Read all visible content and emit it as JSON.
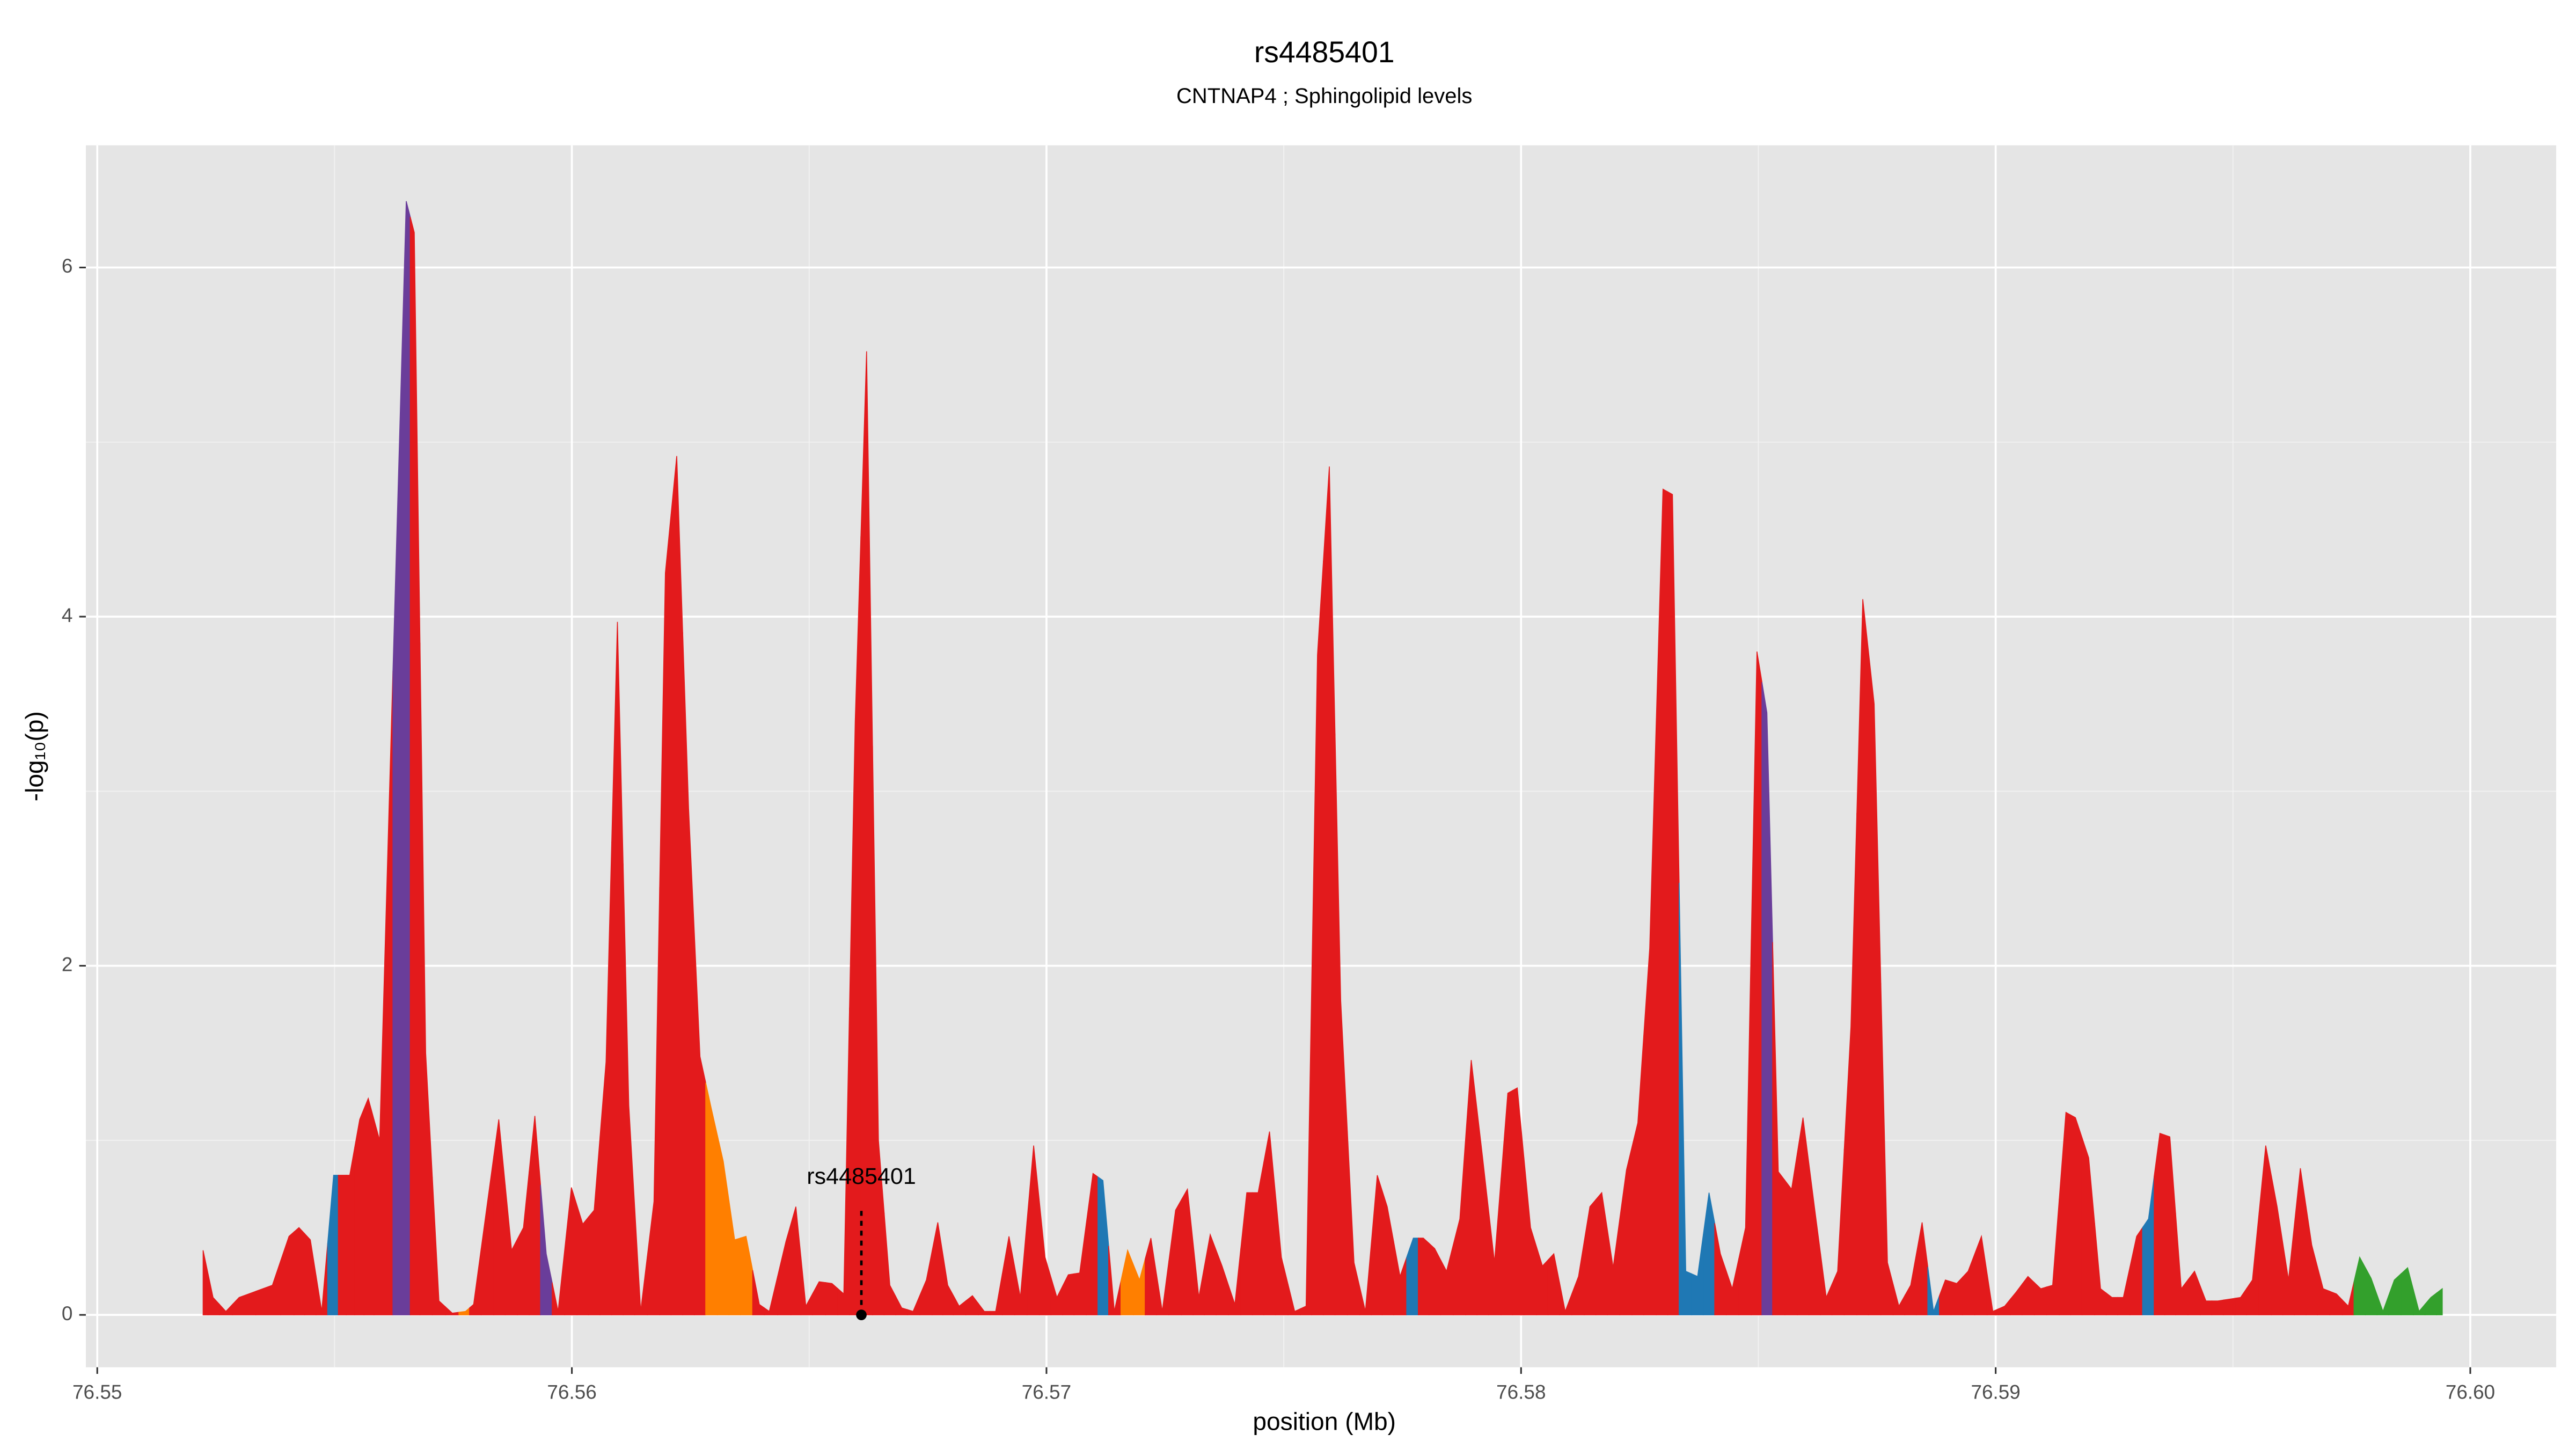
{
  "chart_data": {
    "type": "area",
    "title": "rs4485401",
    "subtitle": "CNTNAP4 ; Sphingolipid levels",
    "x_label": "position (Mb)",
    "y_label": "-log₁₀(p)",
    "xlim": [
      76.54976,
      76.60181
    ],
    "ylim": [
      -0.3,
      6.7
    ],
    "xticks": [
      76.55,
      76.56,
      76.57,
      76.58,
      76.59,
      {
        "value": 76.6,
        "label": "76.60"
      }
    ],
    "yticks": [
      0,
      2,
      4,
      6
    ],
    "grid": true,
    "highlight": {
      "label": "rs4485401",
      "x": 76.5661,
      "value": 0
    },
    "x": [
      76.55223,
      76.55244,
      76.55271,
      76.55299,
      76.55369,
      76.55404,
      76.55425,
      76.55449,
      76.55473,
      76.55498,
      76.55518,
      76.55532,
      76.55553,
      76.55571,
      76.55595,
      76.55651,
      76.55668,
      76.55692,
      76.5572,
      76.55748,
      76.55776,
      76.55793,
      76.55825,
      76.55846,
      76.55873,
      76.55898,
      76.55922,
      76.55946,
      76.55971,
      76.55999,
      76.56023,
      76.56047,
      76.56072,
      76.56096,
      76.5612,
      76.56145,
      76.56173,
      76.56197,
      76.56221,
      76.56246,
      76.5627,
      76.56294,
      76.56319,
      76.56343,
      76.56367,
      76.56395,
      76.56416,
      76.56451,
      76.56472,
      76.56493,
      76.56521,
      76.56548,
      76.56573,
      76.56597,
      76.56621,
      76.56646,
      76.5667,
      76.56695,
      76.56719,
      76.56747,
      76.56771,
      76.56792,
      76.56816,
      76.56844,
      76.56869,
      76.56893,
      76.56921,
      76.56945,
      76.56973,
      76.56997,
      76.57022,
      76.57046,
      76.5707,
      76.57098,
      76.57119,
      76.57143,
      76.57171,
      76.57196,
      76.5722,
      76.57244,
      76.57272,
      76.57297,
      76.57321,
      76.57345,
      76.5737,
      76.57397,
      76.57422,
      76.57446,
      76.5747,
      76.57495,
      76.57523,
      76.57547,
      76.57571,
      76.57596,
      76.5762,
      76.57648,
      76.57672,
      76.57697,
      76.57718,
      76.57745,
      76.57773,
      76.57794,
      76.57818,
      76.57843,
      76.57871,
      76.57895,
      76.57919,
      76.57944,
      76.57972,
      76.57992,
      76.5802,
      76.58045,
      76.58069,
      76.58093,
      76.58121,
      76.58145,
      76.5817,
      76.58194,
      76.58222,
      76.58246,
      76.58271,
      76.58299,
      76.58319,
      76.58347,
      76.58372,
      76.58396,
      76.5842,
      76.58445,
      76.58473,
      76.58497,
      76.58518,
      76.58542,
      76.5857,
      76.58594,
      76.58619,
      76.58643,
      76.58667,
      76.58695,
      76.5872,
      76.58744,
      76.58772,
      76.58796,
      76.58821,
      76.58845,
      76.58869,
      76.58894,
      76.58918,
      76.58942,
      76.5897,
      76.58994,
      76.59019,
      76.59043,
      76.59068,
      76.59095,
      76.5912,
      76.59148,
      76.59168,
      76.59196,
      76.59221,
      76.59245,
      76.59269,
      76.59297,
      76.59322,
      76.59346,
      76.59367,
      76.59391,
      76.59419,
      76.59443,
      76.59468,
      76.59492,
      76.59516,
      76.59541,
      76.59569,
      76.59593,
      76.59617,
      76.59642,
      76.59666,
      76.5969,
      76.59718,
      76.59743,
      76.59767,
      76.59791,
      76.59816,
      76.5984,
      76.59868,
      76.59892,
      76.59917,
      76.59941
    ],
    "values": [
      0.37,
      0.1,
      0.02,
      0.1,
      0.17,
      0.45,
      0.5,
      0.43,
      0.02,
      0.8,
      0.8,
      0.8,
      1.12,
      1.24,
      1.0,
      6.38,
      6.2,
      1.5,
      0.08,
      0.01,
      0.02,
      0.06,
      0.7,
      1.12,
      0.37,
      0.5,
      1.14,
      0.35,
      0.02,
      0.73,
      0.52,
      0.6,
      1.45,
      3.97,
      1.2,
      0.02,
      0.65,
      4.25,
      4.92,
      2.9,
      1.48,
      1.18,
      0.88,
      0.43,
      0.45,
      0.06,
      0.02,
      0.42,
      0.62,
      0.05,
      0.19,
      0.18,
      0.12,
      3.4,
      5.52,
      1.0,
      0.17,
      0.04,
      0.02,
      0.2,
      0.53,
      0.17,
      0.05,
      0.11,
      0.02,
      0.02,
      0.45,
      0.1,
      0.97,
      0.33,
      0.1,
      0.23,
      0.24,
      0.81,
      0.77,
      0.02,
      0.37,
      0.2,
      0.44,
      0.02,
      0.6,
      0.72,
      0.1,
      0.46,
      0.28,
      0.06,
      0.7,
      0.7,
      1.05,
      0.33,
      0.02,
      0.05,
      3.78,
      4.86,
      1.8,
      0.3,
      0.02,
      0.8,
      0.62,
      0.22,
      0.44,
      0.44,
      0.38,
      0.25,
      0.55,
      1.46,
      0.9,
      0.3,
      1.27,
      1.3,
      0.5,
      0.28,
      0.35,
      0.02,
      0.22,
      0.62,
      0.7,
      0.27,
      0.83,
      1.1,
      2.1,
      4.73,
      4.7,
      0.25,
      0.22,
      0.7,
      0.35,
      0.15,
      0.5,
      3.8,
      3.45,
      0.82,
      0.72,
      1.13,
      0.6,
      0.1,
      0.25,
      1.65,
      4.1,
      3.5,
      0.3,
      0.05,
      0.17,
      0.53,
      0.02,
      0.2,
      0.18,
      0.25,
      0.45,
      0.02,
      0.05,
      0.13,
      0.22,
      0.15,
      0.17,
      1.16,
      1.13,
      0.9,
      0.15,
      0.1,
      0.1,
      0.45,
      0.55,
      1.04,
      1.02,
      0.15,
      0.25,
      0.08,
      0.08,
      0.09,
      0.1,
      0.2,
      0.97,
      0.62,
      0.2,
      0.84,
      0.4,
      0.15,
      0.12,
      0.05,
      0.33,
      0.21,
      0.02,
      0.2,
      0.27,
      0.02,
      0.1,
      0.15
    ],
    "colors": [
      "#e31a1c",
      "#e31a1c",
      "#e31a1c",
      "#e31a1c",
      "#e31a1c",
      "#e31a1c",
      "#e31a1c",
      "#e31a1c",
      "#e31a1c",
      "#1f78b4",
      "#e31a1c",
      "#e31a1c",
      "#e31a1c",
      "#e31a1c",
      "#e31a1c",
      "#6a3d9a",
      "#e31a1c",
      "#e31a1c",
      "#e31a1c",
      "#e31a1c",
      "#ff7f00",
      "#e31a1c",
      "#e31a1c",
      "#e31a1c",
      "#e31a1c",
      "#e31a1c",
      "#e31a1c",
      "#6a3d9a",
      "#e31a1c",
      "#e31a1c",
      "#e31a1c",
      "#e31a1c",
      "#e31a1c",
      "#e31a1c",
      "#e31a1c",
      "#e31a1c",
      "#e31a1c",
      "#e31a1c",
      "#e31a1c",
      "#e31a1c",
      "#e31a1c",
      "#ff7f00",
      "#ff7f00",
      "#ff7f00",
      "#ff7f00",
      "#e31a1c",
      "#e31a1c",
      "#e31a1c",
      "#e31a1c",
      "#e31a1c",
      "#e31a1c",
      "#e31a1c",
      "#e31a1c",
      "#e31a1c",
      "#e31a1c",
      "#e31a1c",
      "#e31a1c",
      "#e31a1c",
      "#e31a1c",
      "#e31a1c",
      "#e31a1c",
      "#e31a1c",
      "#e31a1c",
      "#e31a1c",
      "#e31a1c",
      "#e31a1c",
      "#e31a1c",
      "#e31a1c",
      "#e31a1c",
      "#e31a1c",
      "#e31a1c",
      "#e31a1c",
      "#e31a1c",
      "#e31a1c",
      "#1f78b4",
      "#e31a1c",
      "#ff7f00",
      "#ff7f00",
      "#e31a1c",
      "#e31a1c",
      "#e31a1c",
      "#e31a1c",
      "#e31a1c",
      "#e31a1c",
      "#e31a1c",
      "#e31a1c",
      "#e31a1c",
      "#e31a1c",
      "#e31a1c",
      "#e31a1c",
      "#e31a1c",
      "#e31a1c",
      "#e31a1c",
      "#e31a1c",
      "#e31a1c",
      "#e31a1c",
      "#e31a1c",
      "#e31a1c",
      "#e31a1c",
      "#e31a1c",
      "#1f78b4",
      "#e31a1c",
      "#e31a1c",
      "#e31a1c",
      "#e31a1c",
      "#e31a1c",
      "#e31a1c",
      "#e31a1c",
      "#e31a1c",
      "#e31a1c",
      "#e31a1c",
      "#e31a1c",
      "#e31a1c",
      "#e31a1c",
      "#e31a1c",
      "#e31a1c",
      "#e31a1c",
      "#e31a1c",
      "#e31a1c",
      "#e31a1c",
      "#e31a1c",
      "#e31a1c",
      "#e31a1c",
      "#1f78b4",
      "#1f78b4",
      "#1f78b4",
      "#e31a1c",
      "#e31a1c",
      "#e31a1c",
      "#e31a1c",
      "#6a3d9a",
      "#e31a1c",
      "#e31a1c",
      "#e31a1c",
      "#e31a1c",
      "#e31a1c",
      "#e31a1c",
      "#e31a1c",
      "#e31a1c",
      "#e31a1c",
      "#e31a1c",
      "#e31a1c",
      "#e31a1c",
      "#e31a1c",
      "#1f78b4",
      "#e31a1c",
      "#e31a1c",
      "#e31a1c",
      "#e31a1c",
      "#e31a1c",
      "#e31a1c",
      "#e31a1c",
      "#e31a1c",
      "#e31a1c",
      "#e31a1c",
      "#e31a1c",
      "#e31a1c",
      "#e31a1c",
      "#e31a1c",
      "#e31a1c",
      "#e31a1c",
      "#e31a1c",
      "#1f78b4",
      "#e31a1c",
      "#e31a1c",
      "#e31a1c",
      "#e31a1c",
      "#e31a1c",
      "#e31a1c",
      "#e31a1c",
      "#e31a1c",
      "#e31a1c",
      "#e31a1c",
      "#e31a1c",
      "#e31a1c",
      "#e31a1c",
      "#e31a1c",
      "#e31a1c",
      "#e31a1c",
      "#e31a1c",
      "#33a02c",
      "#33a02c",
      "#33a02c",
      "#33a02c",
      "#33a02c",
      "#33a02c",
      "#33a02c",
      "#33a02c"
    ]
  }
}
